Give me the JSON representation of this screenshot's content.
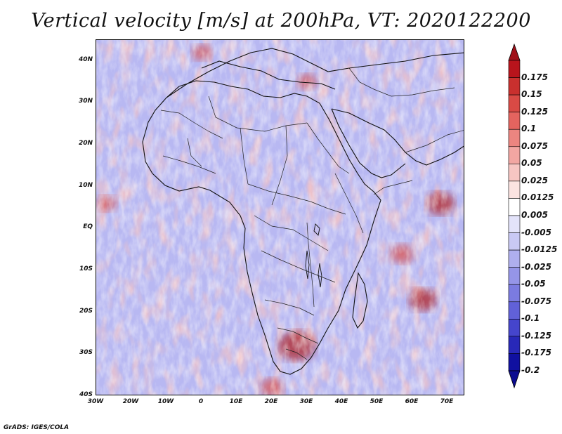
{
  "title": "Vertical velocity [m/s] at 200hPa, VT: 2020122200",
  "footer": "GrADS: IGES/COLA",
  "map": {
    "lon_range": [
      -30,
      75
    ],
    "lat_range": [
      -40,
      45
    ],
    "lat_ticks": [
      "40N",
      "30N",
      "20N",
      "10N",
      "EQ",
      "10S",
      "20S",
      "30S",
      "40S"
    ],
    "lon_ticks": [
      "30W",
      "20W",
      "10W",
      "0",
      "10E",
      "20E",
      "30E",
      "40E",
      "50E",
      "60E",
      "70E"
    ],
    "hotspots": [
      {
        "lon": 27,
        "lat": -28,
        "value": 0.15
      },
      {
        "lon": 63,
        "lat": -17,
        "value": 0.1
      },
      {
        "lon": 57,
        "lat": -6,
        "value": 0.075
      },
      {
        "lon": 68,
        "lat": 6,
        "value": 0.1
      },
      {
        "lon": 30,
        "lat": 35,
        "value": 0.05
      },
      {
        "lon": 0,
        "lat": 42,
        "value": 0.05
      },
      {
        "lon": -27,
        "lat": 6,
        "value": 0.05
      },
      {
        "lon": 20,
        "lat": -38,
        "value": 0.075
      }
    ]
  },
  "colorbar": {
    "labels": [
      "0.175",
      "0.15",
      "0.125",
      "0.1",
      "0.075",
      "0.05",
      "0.025",
      "0.0125",
      "0.005",
      "-0.005",
      "-0.0125",
      "-0.025",
      "-0.05",
      "-0.075",
      "-0.1",
      "-0.125",
      "-0.175",
      "-0.2"
    ],
    "colors": [
      "#b8141c",
      "#c9302e",
      "#d94a45",
      "#e4645f",
      "#ec8580",
      "#f2a6a2",
      "#f7c6c3",
      "#fbe3e1",
      "#ffffff",
      "#e3e3fa",
      "#c9c9f4",
      "#afafee",
      "#9595e8",
      "#7b7be0",
      "#6161d8",
      "#4545cc",
      "#2828b8",
      "#1010a0"
    ],
    "top_color": "#a01018",
    "bottom_color": "#0c0c90"
  }
}
